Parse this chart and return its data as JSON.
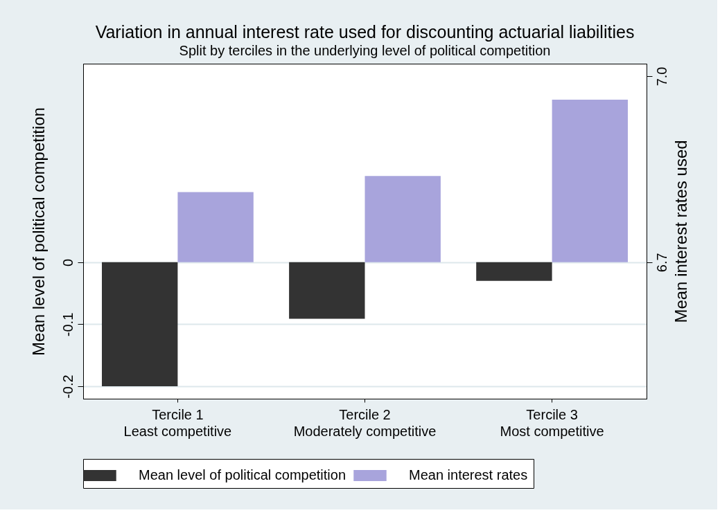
{
  "chart_data": {
    "type": "bar",
    "title": "Variation in annual interest rate used for discounting actuarial liabilities",
    "subtitle": "Split by terciles in the underlying level of political competition",
    "ylabel": "Mean level of political competition",
    "y2label": "Mean interest rates used",
    "categories": [
      "Tercile 1\nLeast competitive",
      "Tercile 2\nModerately competitive",
      "Tercile 3\nMost competitive"
    ],
    "series": [
      {
        "name": "Mean level of political competition",
        "color": "#333333",
        "values": [
          -0.2,
          -0.091,
          -0.03
        ]
      },
      {
        "name": "Mean interest rates",
        "color": "#a8a4dc",
        "axis": "y2",
        "base": [
          6.7,
          6.7,
          6.7
        ],
        "values": [
          0.113,
          0.139,
          0.262
        ]
      }
    ],
    "ylim": [
      -0.22,
      0.32
    ],
    "yticks": [
      -0.2,
      -0.1,
      0
    ],
    "y2lim": [
      6.48,
      7.02
    ],
    "y2ticks": [
      {
        "value": 6.7,
        "label": "6.7"
      },
      {
        "value": 7.0,
        "label": "7.0"
      }
    ],
    "grid": "y",
    "legend": "bottom"
  }
}
